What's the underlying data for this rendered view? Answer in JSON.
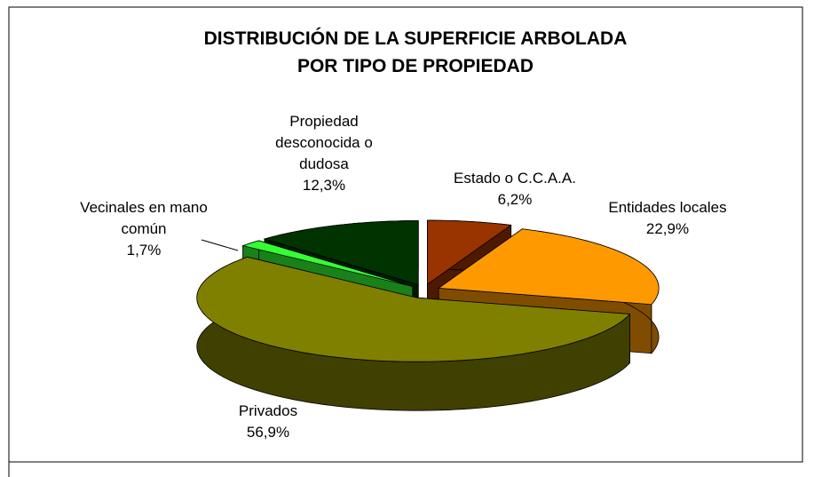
{
  "chart_data": {
    "type": "pie3d",
    "title": "DISTRIBUCIÓN DE LA SUPERFICIE ARBOLADA POR TIPO DE PROPIEDAD",
    "categories": [
      "Estado o C.C.A.A.",
      "Entidades locales",
      "Privados",
      "Vecinales en mano común",
      "Propiedad desconocida o dudosa"
    ],
    "values": [
      6.2,
      22.9,
      56.9,
      1.7,
      12.3
    ],
    "value_labels": [
      "6,2%",
      "22,9%",
      "56,9%",
      "1,7%",
      "12,3%"
    ],
    "colors": [
      "#993300",
      "#ff9900",
      "#808000",
      "#33ff33",
      "#003300"
    ]
  }
}
